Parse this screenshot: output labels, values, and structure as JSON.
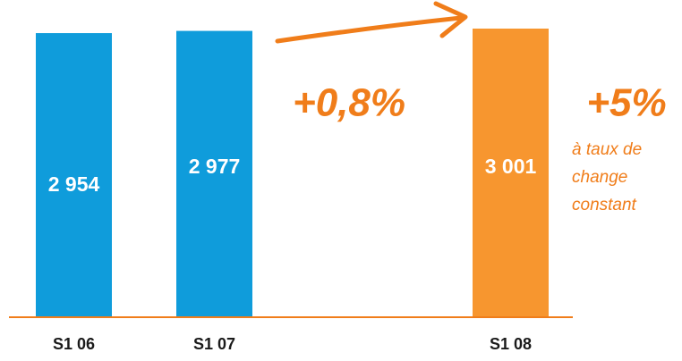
{
  "chart_data": {
    "type": "bar",
    "categories": [
      "S1 06",
      "S1 07",
      "S1 08"
    ],
    "values": [
      2954,
      2977,
      3001
    ],
    "value_labels": [
      "2 954",
      "2 977",
      "3 001"
    ],
    "colors": [
      "#0f9cdb",
      "#0f9cdb",
      "#f7962f"
    ],
    "annotations": [
      "+0,8%",
      "+5%",
      "à taux de",
      "change",
      "constant"
    ]
  }
}
